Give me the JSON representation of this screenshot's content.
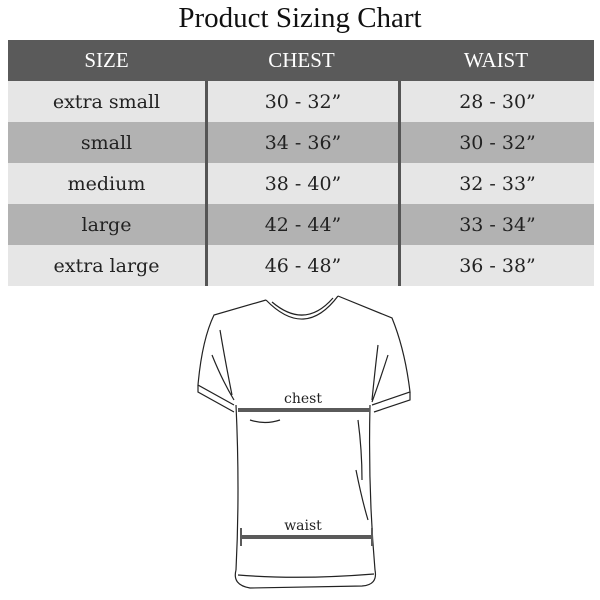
{
  "title": "Product Sizing Chart",
  "table": {
    "headers": [
      "SIZE",
      "CHEST",
      "WAIST"
    ],
    "rows": [
      [
        "extra small",
        "30 - 32”",
        "28 - 30”"
      ],
      [
        "small",
        "34 - 36”",
        "30 - 32”"
      ],
      [
        "medium",
        "38 - 40”",
        "32 - 33”"
      ],
      [
        "large",
        "42 - 44”",
        "33 - 34”"
      ],
      [
        "extra large",
        "46 - 48”",
        "36 - 38”"
      ]
    ]
  },
  "diagram": {
    "chest_label": "chest",
    "waist_label": "waist"
  },
  "colors": {
    "header_bg": "#5a5a5a",
    "row_light": "#e6e6e6",
    "row_dark": "#b2b2b2",
    "measure_line": "#5a5a5a"
  }
}
